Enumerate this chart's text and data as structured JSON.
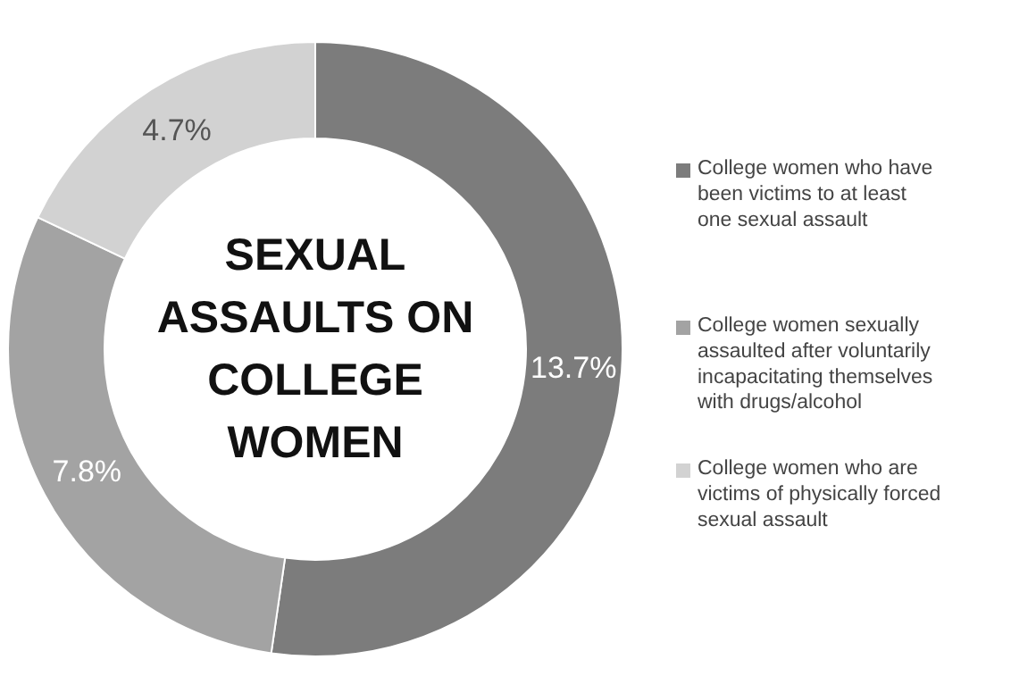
{
  "chart_data": {
    "type": "donut",
    "title": "SEXUAL\nASSAULTS ON\nCOLLEGE\nWOMEN",
    "categories": [
      "College women who have\nbeen victims to at least\none sexual assault",
      "College women sexually\nassaulted after voluntarily\nincapacitating themselves\nwith drugs/alcohol",
      "College women who are\nvictims of physically forced\nsexual assault"
    ],
    "values": [
      13.7,
      7.8,
      4.7
    ],
    "value_labels": [
      "13.7%",
      "7.8%",
      "4.7%"
    ],
    "colors": [
      "#7c7c7c",
      "#a3a3a3",
      "#d2d2d2"
    ],
    "legend": "right"
  }
}
